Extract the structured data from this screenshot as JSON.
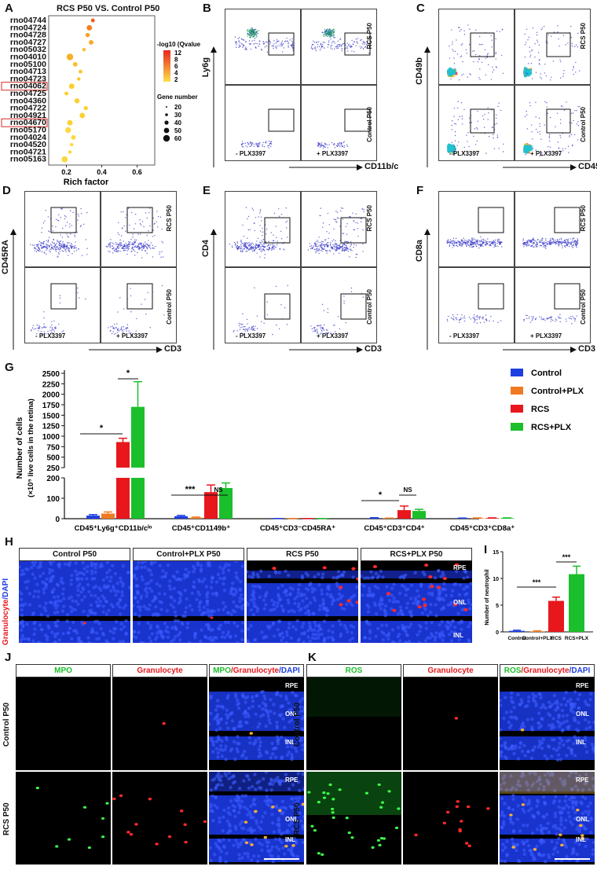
{
  "panels": {
    "A": "A",
    "B": "B",
    "C": "C",
    "D": "D",
    "E": "E",
    "F": "F",
    "G": "G",
    "H": "H",
    "I": "I",
    "J": "J",
    "K": "K"
  },
  "panelA": {
    "title": "RCS P50 VS. Control P50",
    "pathways": [
      "rno04744",
      "rno04724",
      "rno04728",
      "rno04727",
      "rno05032",
      "rno04010",
      "rno05100",
      "rno04713",
      "rno04723",
      "rno04062",
      "rno04725",
      "rno04360",
      "rno04722",
      "rno04921",
      "rno04670",
      "rno05170",
      "rno04024",
      "rno04520",
      "rno04721",
      "rno05163"
    ],
    "highlighted": [
      "rno04062",
      "rno04670"
    ],
    "xlabel": "Rich factor",
    "xticks": [
      "0.2",
      "0.4",
      "0.6"
    ],
    "color_legend_title": "-log10 (Qvalue)",
    "color_ticks": [
      "12",
      "8",
      "6",
      "4",
      "2"
    ],
    "size_legend_title": "Gene number",
    "size_ticks": [
      "20",
      "30",
      "40",
      "50",
      "60"
    ]
  },
  "flow": {
    "B": {
      "ylabel": "Ly6g",
      "xlabel": "CD11b/c"
    },
    "C": {
      "ylabel": "CD49b",
      "xlabel": "CD45"
    },
    "D": {
      "ylabel": "CD45RA",
      "xlabel": "CD3"
    },
    "E": {
      "ylabel": "CD4",
      "xlabel": "CD3"
    },
    "F": {
      "ylabel": "CD8a",
      "xlabel": "CD3"
    },
    "row_top": "RCS P50",
    "row_bottom": "Control P50",
    "minus": "- PLX3397",
    "plus": "+ PLX3397"
  },
  "panelG": {
    "ylabel": "Number of cells",
    "ylabel2": "(×10⁵ live cells in the retina)",
    "legend": [
      {
        "name": "Control",
        "color": "#1d3fe0"
      },
      {
        "name": "Control+PLX",
        "color": "#f07a22"
      },
      {
        "name": "RCS",
        "color": "#e8171c"
      },
      {
        "name": "RCS+PLX",
        "color": "#1bbf2b"
      }
    ],
    "groups": [
      "CD45⁺Ly6g⁺CD11b/c^lo",
      "CD45⁺CD1149b⁺",
      "CD45⁺CD3⁻CD45RA⁺",
      "CD45⁺CD3⁺CD4⁺",
      "CD45⁺CD3⁺CD8a⁺"
    ],
    "upper_ticks": [
      "2500",
      "2250",
      "2000",
      "1750",
      "1500",
      "1250",
      "1000",
      "750",
      "500",
      "250"
    ],
    "lower_ticks": [
      "200",
      "100",
      "0"
    ],
    "sig": [
      "*",
      "*",
      "***",
      "NS",
      "*",
      "NS"
    ]
  },
  "chart_data": [
    {
      "type": "bar",
      "title": "",
      "xlabel": "",
      "ylabel": "Number of cells (×10⁵ live cells in the retina)",
      "categories": [
        "CD45⁺Ly6g⁺CD11b/c^lo",
        "CD45⁺CD1149b⁺",
        "CD45⁺CD3⁻CD45RA⁺",
        "CD45⁺CD3⁺CD4⁺",
        "CD45⁺CD3⁺CD8a⁺"
      ],
      "series": [
        {
          "name": "Control",
          "values": [
            15,
            12,
            1,
            3,
            2
          ]
        },
        {
          "name": "Control+PLX",
          "values": [
            25,
            5,
            1,
            2,
            3
          ]
        },
        {
          "name": "RCS",
          "values": [
            860,
            130,
            1,
            42,
            3
          ]
        },
        {
          "name": "RCS+PLX",
          "values": [
            1700,
            150,
            1,
            38,
            3
          ]
        }
      ],
      "errors": [
        [
          5,
          4,
          0,
          2,
          1
        ],
        [
          8,
          3,
          0,
          1,
          1
        ],
        [
          90,
          35,
          0,
          20,
          1
        ],
        [
          600,
          25,
          0,
          8,
          1
        ]
      ],
      "broken_axis": {
        "lower": [
          0,
          200
        ],
        "upper": [
          250,
          2500
        ]
      }
    },
    {
      "type": "bar",
      "title": "",
      "xlabel": "",
      "ylabel": "Number of neutrophil",
      "categories": [
        "Control",
        "Control+PLX",
        "RCS",
        "RCS+PLX"
      ],
      "values": [
        0.2,
        0.1,
        5.8,
        10.8
      ],
      "errors": [
        0.1,
        0.1,
        0.7,
        1.5
      ],
      "ylim": [
        0,
        12
      ]
    }
  ],
  "panelH": {
    "side_label_red": "Granulocyte",
    "side_label_blue": "DAPI",
    "headers": [
      "Control P50",
      "Control+PLX P50",
      "RCS P50",
      "RCS+PLX P50"
    ],
    "layers": [
      "RPE",
      "ONL",
      "INL"
    ]
  },
  "panelI": {
    "ylabel": "Number of neutrophil",
    "categories": [
      "Control",
      "Control+PLX",
      "RCS",
      "RCS+PLX"
    ],
    "yticks": [
      "15",
      "10",
      "5",
      "0"
    ],
    "sig": [
      "***",
      "***"
    ]
  },
  "panelJ": {
    "headers": [
      "MPO",
      "Granulocyte",
      "MPO/Granulocyte/DAPI"
    ],
    "rows": [
      "Control P50",
      "RCS P50"
    ],
    "layers": [
      "RPE",
      "ONL",
      "INL"
    ]
  },
  "panelK": {
    "headers": [
      "ROS",
      "Granulocyte",
      "ROS/Granulocyte/DAPI"
    ],
    "rows": [
      "Control P50",
      "RCS P50"
    ],
    "layers": [
      "RPE",
      "ONL",
      "INL"
    ]
  },
  "colors": {
    "green": "#1bbf2b",
    "red": "#e8171c",
    "blue": "#1d3fe0",
    "orange": "#f07a22",
    "dapi": "#1a2ec8"
  }
}
